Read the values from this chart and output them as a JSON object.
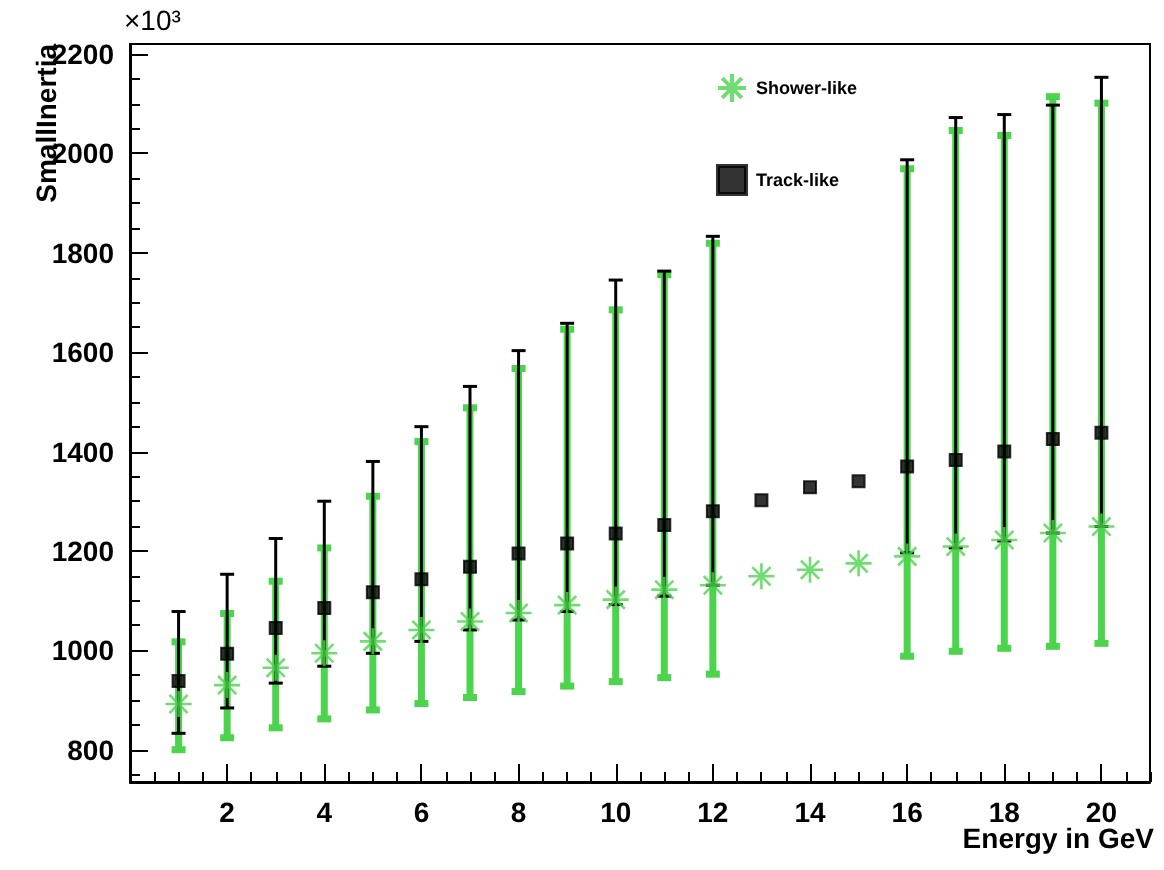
{
  "chart_data": {
    "type": "scatter",
    "xlabel": "Energy in GeV",
    "ylabel": "SmallInertia",
    "annotations": [
      "×10³"
    ],
    "x": [
      1,
      2,
      3,
      4,
      5,
      6,
      7,
      8,
      9,
      10,
      11,
      12,
      13,
      14,
      15,
      16,
      17,
      18,
      19,
      20
    ],
    "series": [
      {
        "name": "Shower-like",
        "color": "#4cd44c",
        "marker": "cross",
        "values": [
          892,
          930,
          965,
          994,
          1018,
          1041,
          1058,
          1075,
          1091,
          1102,
          1122,
          1131,
          1149,
          1162,
          1175,
          1189,
          1209,
          1222,
          1236,
          1249
        ],
        "errors": [
          [
            800,
            1017
          ],
          [
            824,
            1074
          ],
          [
            844,
            1139
          ],
          [
            862,
            1206
          ],
          [
            880,
            1310
          ],
          [
            893,
            1420
          ],
          [
            905,
            1488
          ],
          [
            917,
            1567
          ],
          [
            928,
            1646
          ],
          [
            937,
            1685
          ],
          [
            945,
            1756
          ],
          [
            952,
            1819
          ],
          null,
          null,
          null,
          [
            988,
            1969
          ],
          [
            998,
            2046
          ],
          [
            1004,
            2036
          ],
          [
            1008,
            2114
          ],
          [
            1014,
            2101
          ]
        ]
      },
      {
        "name": "Track-like",
        "color": "#000000",
        "marker": "square",
        "values": [
          938,
          993,
          1045,
          1085,
          1117,
          1143,
          1168,
          1195,
          1215,
          1235,
          1252,
          1280,
          1302,
          1328,
          1340,
          1370,
          1383,
          1400,
          1425,
          1438
        ],
        "errors": [
          [
            833,
            1078
          ],
          [
            884,
            1153
          ],
          [
            934,
            1225
          ],
          [
            968,
            1300
          ],
          [
            994,
            1380
          ],
          [
            1018,
            1450
          ],
          [
            1041,
            1531
          ],
          [
            1061,
            1603
          ],
          [
            1078,
            1658
          ],
          [
            1092,
            1745
          ],
          [
            1109,
            1763
          ],
          [
            1131,
            1833
          ],
          null,
          null,
          null,
          [
            1196,
            1987
          ],
          [
            1206,
            2072
          ],
          [
            1220,
            2078
          ],
          [
            1236,
            2097
          ],
          [
            1249,
            2153
          ]
        ]
      }
    ],
    "xlim": [
      0,
      21
    ],
    "xticks": [
      2,
      4,
      6,
      8,
      10,
      12,
      14,
      16,
      18,
      20
    ],
    "ylim": [
      735,
      2220
    ],
    "yticks": [
      800,
      1000,
      1200,
      1400,
      1600,
      1800,
      2000,
      2200
    ],
    "grid": false,
    "legend": "top right"
  }
}
